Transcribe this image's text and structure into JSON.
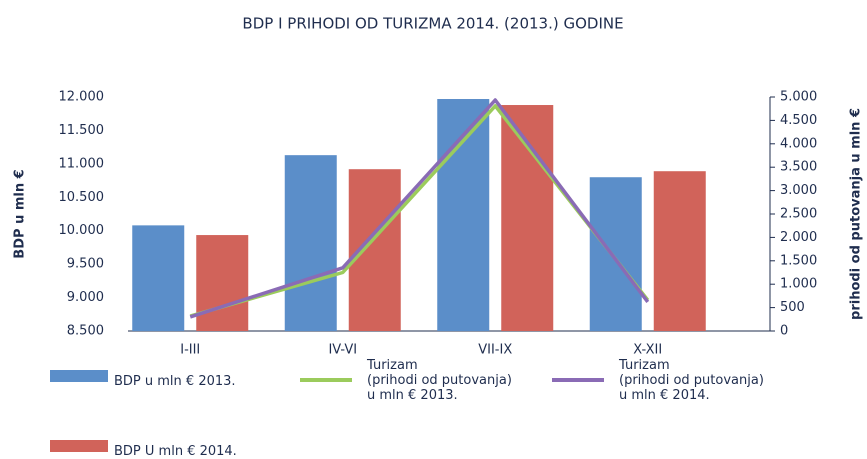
{
  "chart_data": {
    "type": "bar-line",
    "title": "BDP I PRIHODI OD TURIZMA 2014. (2013.) GODINE",
    "ylabel": "BDP u mln €",
    "y2label": "prihodi od putovanja u mln €",
    "categories": [
      "I-III",
      "IV-VI",
      "VII-IX",
      "X-XII"
    ],
    "ylim": [
      8500,
      12000
    ],
    "yticks": [
      {
        "value": 8500,
        "label": "8.500"
      },
      {
        "value": 9000,
        "label": "9.000"
      },
      {
        "value": 9500,
        "label": "9.500"
      },
      {
        "value": 10000,
        "label": "10.000"
      },
      {
        "value": 10500,
        "label": "10.500"
      },
      {
        "value": 11000,
        "label": "11.000"
      },
      {
        "value": 11500,
        "label": "11.500"
      },
      {
        "value": 12000,
        "label": "12.000"
      }
    ],
    "y2lim": [
      0,
      5000
    ],
    "y2ticks": [
      0,
      500,
      {
        "value": 1000,
        "label": "1.000"
      },
      {
        "value": 1500,
        "label": "1.500"
      },
      {
        "value": 2000,
        "label": "2.000"
      },
      {
        "value": 2500,
        "label": "2.500"
      },
      {
        "value": 3000,
        "label": "3.000"
      },
      {
        "value": 3500,
        "label": "3.500"
      },
      {
        "value": 4000,
        "label": "4.000"
      },
      {
        "value": 4500,
        "label": "4.500"
      },
      {
        "value": 5000,
        "label": "5.000"
      }
    ],
    "series": [
      {
        "name": "BDP u mln € 2013.",
        "kind": "bar",
        "color": "#5b8ec9",
        "values": [
          10080,
          11130,
          11970,
          10800
        ]
      },
      {
        "name": "BDP U mln € 2014.",
        "kind": "bar",
        "color": "#d1635a",
        "values": [
          9935,
          10920,
          11880,
          10890
        ]
      },
      {
        "name": "Turizam\n(prihodi od putovanja)\nu mln € 2013.",
        "kind": "line",
        "axis": "y2",
        "color": "#9bcb5c",
        "values": [
          320,
          1250,
          4810,
          660
        ]
      },
      {
        "name": "Turizam\n(prihodi od putovanja)\nu mln € 2014.",
        "kind": "line",
        "axis": "y2",
        "color": "#8a6bb5",
        "values": [
          300,
          1350,
          4935,
          620
        ]
      }
    ]
  }
}
